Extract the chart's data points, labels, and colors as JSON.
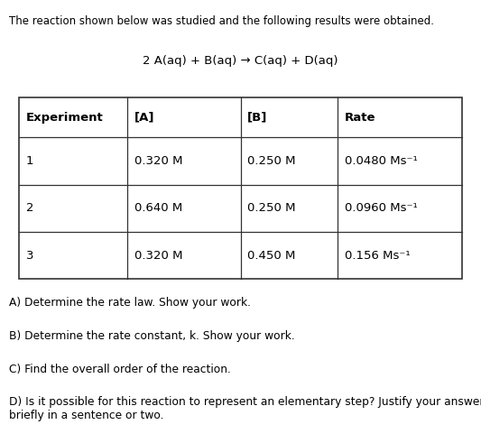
{
  "intro_text": "The reaction shown below was studied and the following results were obtained.",
  "equation": "2 A(aq) + B(aq) → C(aq) + D(aq)",
  "table_headers": [
    "Experiment",
    "[A]",
    "[B]",
    "Rate"
  ],
  "table_rows": [
    [
      "1",
      "0.320 M",
      "0.250 M",
      "0.0480 Ms⁻¹"
    ],
    [
      "2",
      "0.640 M",
      "0.250 M",
      "0.0960 Ms⁻¹"
    ],
    [
      "3",
      "0.320 M",
      "0.450 M",
      "0.156 Ms⁻¹"
    ]
  ],
  "questions": [
    "A) Determine the rate law. Show your work.",
    "B) Determine the rate constant, k. Show your work.",
    "C) Find the overall order of the reaction.",
    "D) Is it possible for this reaction to represent an elementary step? Justify your answer\nbriefly in a sentence or two."
  ],
  "bg_color": "#ffffff",
  "text_color": "#000000",
  "font_size_intro": 8.5,
  "font_size_equation": 9.5,
  "font_size_table_header": 9.5,
  "font_size_table_body": 9.5,
  "font_size_questions": 8.8,
  "fig_width": 5.33,
  "fig_height": 4.91,
  "dpi": 100
}
